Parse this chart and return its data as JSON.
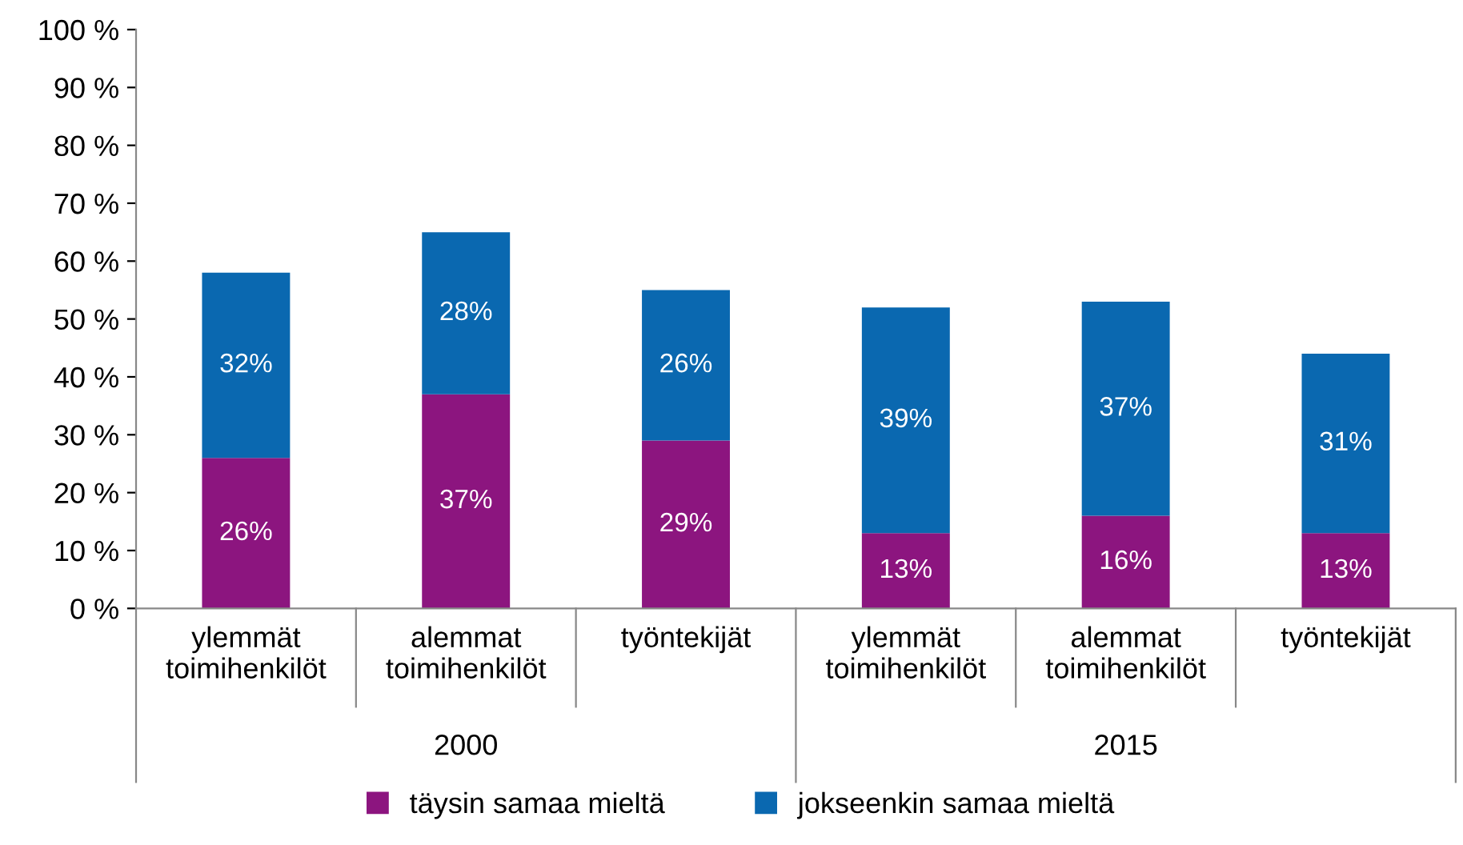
{
  "chart_data": {
    "type": "bar",
    "stacked": true,
    "categories": [
      "ylemmät\ntoimihenkilöt",
      "alemmat\ntoimihenkilöt",
      "työntekijät",
      "ylemmät\ntoimihenkilöt",
      "alemmat\ntoimihenkilöt",
      "työntekijät"
    ],
    "series": [
      {
        "name": "täysin samaa mieltä",
        "color": "#8c157f",
        "values": [
          26,
          37,
          29,
          13,
          16,
          13
        ],
        "value_labels": [
          "26%",
          "37%",
          "29%",
          "13%",
          "16%",
          "13%"
        ]
      },
      {
        "name": "jokseenkin samaa mieltä",
        "color": "#0a68b0",
        "values": [
          32,
          28,
          26,
          39,
          37,
          31
        ],
        "value_labels": [
          "32%",
          "28%",
          "26%",
          "39%",
          "37%",
          "31%"
        ]
      }
    ],
    "annotations": [
      "2000",
      "2015"
    ],
    "ylim": [
      0,
      100
    ],
    "yticks": [
      {
        "value": 0,
        "label": "0 %"
      },
      {
        "value": 10,
        "label": "10 %"
      },
      {
        "value": 20,
        "label": "20 %"
      },
      {
        "value": 30,
        "label": "30 %"
      },
      {
        "value": 40,
        "label": "40 %"
      },
      {
        "value": 50,
        "label": "50 %"
      },
      {
        "value": 60,
        "label": "60 %"
      },
      {
        "value": 70,
        "label": "70 %"
      },
      {
        "value": 80,
        "label": "80 %"
      },
      {
        "value": 90,
        "label": "90 %"
      },
      {
        "value": 100,
        "label": "100 %"
      }
    ],
    "grid": false,
    "legend": "bottom",
    "marker": "square"
  }
}
